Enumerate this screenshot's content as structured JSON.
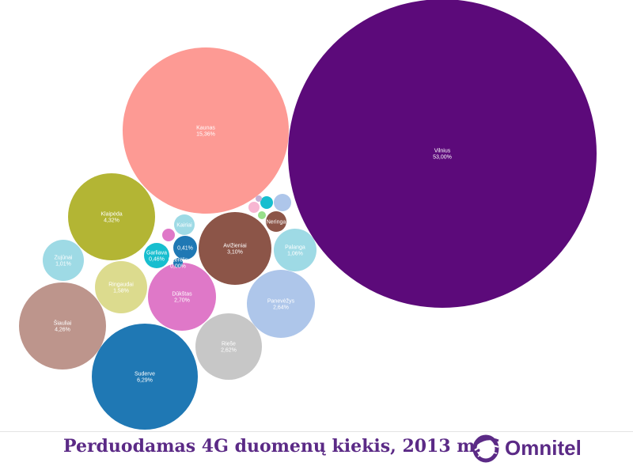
{
  "chart_data": {
    "type": "bubble",
    "title": "Perduodamas 4G duomenų kiekis, 2013 m.",
    "items": [
      {
        "name": "Vilnius",
        "value_label": "53,00%",
        "value": 53.0,
        "color": "#5c0a7a"
      },
      {
        "name": "Kaunas",
        "value_label": "15,36%",
        "value": 15.36,
        "color": "#fd9a94"
      },
      {
        "name": "Suderve",
        "value_label": "6,29%",
        "value": 6.29,
        "color": "#1f78b4"
      },
      {
        "name": "Klaipėda",
        "value_label": "4,32%",
        "value": 4.32,
        "color": "#b3b534"
      },
      {
        "name": "Šiauliai",
        "value_label": "4,26%",
        "value": 4.26,
        "color": "#bd958c"
      },
      {
        "name": "Avižieniai",
        "value_label": "3,10%",
        "value": 3.1,
        "color": "#8c5548"
      },
      {
        "name": "Dūkštas",
        "value_label": "2,70%",
        "value": 2.7,
        "color": "#df78c8"
      },
      {
        "name": "Panevėžys",
        "value_label": "2,64%",
        "value": 2.64,
        "color": "#aec6ea"
      },
      {
        "name": "Rieše",
        "value_label": "2,62%",
        "value": 2.62,
        "color": "#c7c7c7"
      },
      {
        "name": "Ringaudai",
        "value_label": "1,58%",
        "value": 1.58,
        "color": "#dcdb8e"
      },
      {
        "name": "Palanga",
        "value_label": "1,06%",
        "value": 1.06,
        "color": "#9edae5"
      },
      {
        "name": "Zujūnai",
        "value_label": "1,01%",
        "value": 1.01,
        "color": "#9edae5"
      },
      {
        "name": "Garliava",
        "value_label": "0,46%",
        "value": 0.46,
        "color": "#17becf"
      },
      {
        "name": "",
        "value_label": "0,41%",
        "value": 0.41,
        "color": "#1f78b4"
      },
      {
        "name": "Ežerėlis",
        "value_label": "0,00%",
        "value": 0.0,
        "color": "#1f78b4"
      },
      {
        "name": "Kairiai",
        "value_label": "",
        "value": 0.36,
        "color": "#9edae5"
      },
      {
        "name": "Neringa",
        "value_label": "",
        "value": 0.3,
        "color": "#8c5548"
      },
      {
        "name": "",
        "value_label": "",
        "value": 0.15,
        "color": "#aec6ea"
      },
      {
        "name": "",
        "value_label": "",
        "value": 0.08,
        "color": "#17becf"
      },
      {
        "name": "",
        "value_label": "",
        "value": 0.06,
        "color": "#df78c8"
      },
      {
        "name": "",
        "value_label": "",
        "value": 0.05,
        "color": "#f7b6d2"
      },
      {
        "name": "",
        "value_label": "",
        "value": 0.03,
        "color": "#98df8a"
      },
      {
        "name": "",
        "value_label": "",
        "value": 0.01,
        "color": "#c5b0d5"
      }
    ]
  },
  "brand": {
    "name": "Omnitel",
    "logo_icon": "omnitel-logo-icon",
    "color": "#5b2a86"
  }
}
